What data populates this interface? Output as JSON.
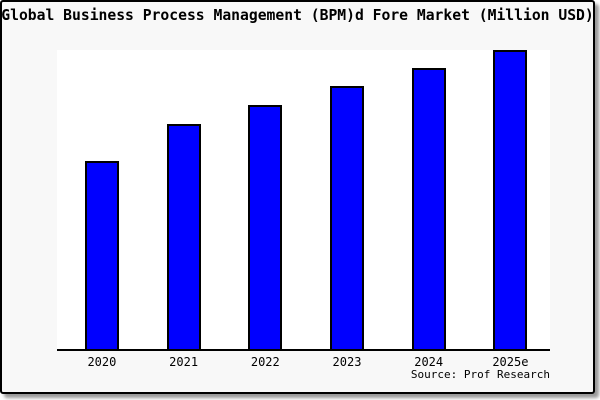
{
  "title": "Global Business Process Management (BPM)d Fore Market (Million USD)",
  "source": "Source: Prof Research",
  "colors": {
    "bar_fill": "#0000ff",
    "bar_border": "#000000",
    "card_background": "#f8f8f8",
    "plot_background": "#ffffff",
    "frame_border": "#000000",
    "shadow": "#9a9a9a",
    "text": "#000000"
  },
  "chart_data": {
    "type": "bar",
    "title": "Global Business Process Management (BPM)d Fore Market (Million USD)",
    "categories": [
      "2020",
      "2021",
      "2022",
      "2023",
      "2024",
      "2025e"
    ],
    "values": [
      62.9,
      75.3,
      81.6,
      88.0,
      94.1,
      100.0
    ],
    "values_unit": "relative bar height, % of 2025e bar (chart shows no y-axis scale or value labels)",
    "xlabel": "",
    "ylabel": "",
    "ylim": [
      0,
      100
    ],
    "grid": false,
    "legend": "none",
    "annotations": [
      "Source: Prof Research"
    ]
  }
}
